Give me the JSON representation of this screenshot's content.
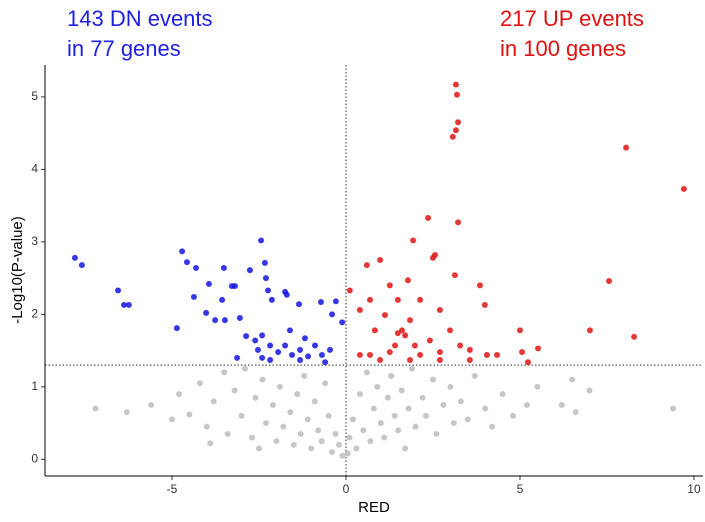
{
  "chart_data": {
    "type": "scatter",
    "x_label": "RED",
    "y_label": "-Log10(P-value)",
    "xlim": [
      -8.65,
      10.26
    ],
    "ylim": [
      -0.23,
      5.44
    ],
    "xticks": [
      -5,
      0,
      5,
      10
    ],
    "yticks": [
      0,
      1,
      2,
      3,
      4,
      5
    ],
    "vline": 0,
    "hline": 1.3,
    "annotations": [
      {
        "lines": [
          "143 DN events",
          "in 77 genes"
        ],
        "color": "#2020e0"
      },
      {
        "lines": [
          "217 UP events",
          "in 100 genes"
        ],
        "color": "#e01010"
      }
    ],
    "series": [
      {
        "color": "#bdbdbd",
        "x": [
          -7.2,
          -6.3,
          -5.6,
          -5.0,
          -4.8,
          -4.5,
          -4.2,
          -4.0,
          -3.8,
          -3.5,
          -3.4,
          -3.2,
          -3.0,
          -2.9,
          -2.7,
          -2.6,
          -2.4,
          -2.3,
          -2.1,
          -2.0,
          -1.9,
          -1.8,
          -1.6,
          -1.5,
          -1.4,
          -1.3,
          -1.2,
          -1.1,
          -1.0,
          -0.9,
          -0.8,
          -0.7,
          -0.6,
          -0.5,
          -0.4,
          -0.3,
          -0.2,
          -0.1,
          0.05,
          0.1,
          0.2,
          0.3,
          0.4,
          0.5,
          0.6,
          0.7,
          0.8,
          0.9,
          1.0,
          1.1,
          1.2,
          1.3,
          1.4,
          1.5,
          1.6,
          1.8,
          1.9,
          2.0,
          2.2,
          2.3,
          2.5,
          2.6,
          2.8,
          3.0,
          3.1,
          3.3,
          3.5,
          3.7,
          4.0,
          4.2,
          4.5,
          4.8,
          5.2,
          5.5,
          6.2,
          6.5,
          6.6,
          7.0,
          9.4,
          -3.9,
          1.7,
          -2.5
        ],
        "y": [
          0.7,
          0.65,
          0.75,
          0.55,
          0.9,
          0.62,
          1.05,
          0.45,
          0.8,
          1.2,
          0.35,
          0.95,
          0.6,
          1.25,
          0.3,
          0.85,
          1.1,
          0.5,
          0.75,
          0.25,
          1.0,
          0.45,
          0.65,
          0.2,
          0.9,
          0.35,
          1.15,
          0.55,
          0.15,
          0.8,
          0.4,
          0.25,
          1.05,
          0.6,
          0.1,
          0.35,
          0.2,
          0.05,
          0.08,
          0.3,
          0.55,
          0.15,
          0.9,
          0.4,
          1.2,
          0.25,
          0.7,
          1.0,
          0.5,
          0.3,
          0.85,
          1.15,
          0.6,
          0.4,
          0.95,
          0.7,
          1.25,
          0.45,
          0.85,
          0.6,
          1.1,
          0.35,
          0.75,
          1.0,
          0.5,
          0.8,
          0.55,
          1.15,
          0.7,
          0.45,
          0.9,
          0.6,
          0.75,
          1.0,
          0.75,
          1.1,
          0.65,
          0.95,
          0.7,
          0.22,
          0.15,
          0.15
        ]
      },
      {
        "color": "#1515e0",
        "x": [
          -7.79,
          -7.59,
          -6.55,
          -6.38,
          -6.24,
          -4.71,
          -4.86,
          -4.57,
          -4.31,
          -4.37,
          -4.02,
          -3.94,
          -3.51,
          -3.28,
          -3.19,
          -3.56,
          -3.76,
          -3.48,
          -3.05,
          -2.76,
          -2.44,
          -2.33,
          -2.3,
          -2.24,
          -2.13,
          -1.75,
          -1.7,
          -1.35,
          -0.72,
          -0.29,
          -0.11,
          -0.4,
          -2.61,
          -2.53,
          -2.41,
          -2.18,
          -1.95,
          -1.75,
          -1.55,
          -1.32,
          -1.09,
          -0.89,
          -0.69,
          -0.46,
          -2.41,
          -1.61,
          -3.13,
          -2.87,
          -2.18,
          -1.32,
          -0.6,
          -1.18
        ],
        "y": [
          2.78,
          2.68,
          2.33,
          2.13,
          2.13,
          2.87,
          1.81,
          2.72,
          2.64,
          2.24,
          2.02,
          2.42,
          2.64,
          2.39,
          2.39,
          2.2,
          1.92,
          1.92,
          1.95,
          2.61,
          3.02,
          2.71,
          2.5,
          2.33,
          2.2,
          2.31,
          2.27,
          2.14,
          2.17,
          2.18,
          1.89,
          2.0,
          1.64,
          1.51,
          1.4,
          1.57,
          1.48,
          1.57,
          1.44,
          1.51,
          1.42,
          1.57,
          1.44,
          1.51,
          1.71,
          1.78,
          1.4,
          1.7,
          1.37,
          1.37,
          1.34,
          1.67
        ]
      },
      {
        "color": "#e01515",
        "x": [
          3.16,
          3.19,
          3.22,
          3.16,
          3.07,
          8.05,
          9.71,
          2.36,
          3.22,
          7.56,
          7.01,
          8.28,
          1.93,
          2.56,
          2.5,
          0.6,
          0.98,
          0.11,
          1.26,
          1.78,
          3.13,
          3.85,
          3.99,
          2.7,
          0.69,
          1.49,
          2.13,
          0.4,
          1.12,
          1.84,
          1.61,
          1.49,
          1.7,
          0.83,
          2.99,
          2.41,
          3.28,
          5.0,
          5.52,
          5.06,
          4.34,
          4.05,
          3.56,
          2.7,
          2.13,
          1.26,
          0.69,
          0.4,
          1.41,
          1.98,
          0.98,
          1.84,
          2.7,
          3.56,
          5.23
        ],
        "y": [
          5.17,
          5.03,
          4.65,
          4.54,
          4.45,
          4.3,
          3.73,
          3.33,
          3.27,
          2.46,
          1.78,
          1.69,
          3.02,
          2.82,
          2.78,
          2.68,
          2.75,
          2.33,
          2.4,
          2.47,
          2.54,
          2.4,
          2.13,
          2.06,
          2.2,
          2.2,
          2.2,
          2.06,
          1.99,
          1.92,
          1.78,
          1.74,
          1.71,
          1.78,
          1.78,
          1.64,
          1.57,
          1.78,
          1.53,
          1.48,
          1.44,
          1.44,
          1.51,
          1.48,
          1.44,
          1.48,
          1.44,
          1.44,
          1.57,
          1.57,
          1.37,
          1.37,
          1.37,
          1.37,
          1.34
        ]
      }
    ]
  }
}
